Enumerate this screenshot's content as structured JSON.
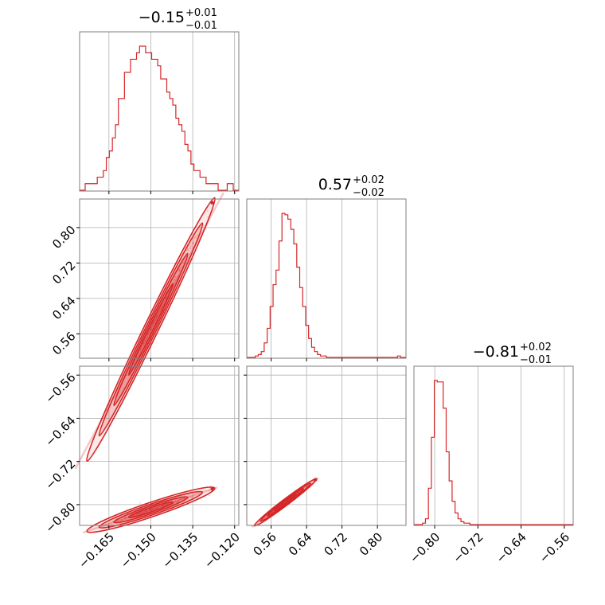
{
  "chart_data": {
    "type": "corner",
    "color": "#d62728",
    "parameters": [
      {
        "median": "−0.15",
        "plus": "+0.01",
        "minus": "−0.01",
        "range": [
          -0.1755,
          -0.1185
        ]
      },
      {
        "median": "0.57",
        "plus": "+0.02",
        "minus": "−0.02",
        "range": [
          0.505,
          0.8645
        ]
      },
      {
        "median": "−0.81",
        "plus": "+0.02",
        "minus": "−0.01",
        "range": [
          -0.8385,
          -0.5435
        ]
      }
    ],
    "ticks": [
      {
        "values": [
          -0.165,
          -0.15,
          -0.135,
          -0.12
        ],
        "labels": [
          "−0.165",
          "−0.150",
          "−0.135",
          "−0.120"
        ]
      },
      {
        "values": [
          0.56,
          0.64,
          0.72,
          0.8
        ],
        "labels": [
          "0.56",
          "0.64",
          "0.72",
          "0.80"
        ]
      },
      {
        "values": [
          -0.8,
          -0.72,
          -0.64,
          -0.56
        ],
        "labels": [
          "−0.80",
          "−0.72",
          "−0.64",
          "−0.56"
        ]
      }
    ],
    "histograms": [
      {
        "param": 0,
        "counts": [
          1,
          1,
          1,
          1,
          2,
          2,
          3,
          5,
          6,
          8,
          10,
          14,
          14,
          18,
          18,
          20,
          20,
          21,
          22,
          22,
          21,
          21,
          20,
          20,
          19,
          17,
          17,
          15,
          14,
          13,
          11,
          10,
          9,
          7,
          6,
          4,
          3,
          3,
          2,
          2,
          1,
          1,
          1,
          1,
          0,
          0,
          0,
          1,
          1
        ]
      },
      {
        "param": 1,
        "counts": [
          0,
          1,
          2,
          4,
          10,
          20,
          35,
          50,
          60,
          80,
          99,
          98,
          95,
          88,
          78,
          62,
          48,
          35,
          22,
          13,
          7,
          4,
          2,
          1,
          1,
          0,
          0,
          0,
          0,
          0,
          0,
          0,
          0,
          0,
          0,
          0,
          0,
          0,
          0,
          0,
          0,
          0,
          0,
          0,
          0,
          0,
          0,
          0,
          0,
          1
        ]
      },
      {
        "param": 2,
        "counts": [
          0,
          1,
          4,
          25,
          60,
          99,
          98,
          98,
          80,
          50,
          30,
          16,
          8,
          4,
          2,
          1,
          1,
          0,
          0,
          0,
          0,
          0,
          0,
          0,
          0,
          0,
          0,
          0,
          0,
          0,
          0,
          0,
          0,
          0,
          0,
          0,
          0,
          0,
          0,
          0,
          0,
          0,
          0,
          0,
          0,
          0,
          0,
          0,
          0,
          0
        ]
      }
    ],
    "correlations": [
      {
        "x": 0,
        "y": 1,
        "slope": 13.0,
        "intercept": 2.52,
        "scatter": 0.012
      },
      {
        "x": 0,
        "y": 2,
        "slope": 1.75,
        "intercept": -0.547,
        "scatter": 0.006
      },
      {
        "x": 1,
        "y": 2,
        "slope": 0.62,
        "intercept": -1.163,
        "scatter": 0.003
      }
    ]
  }
}
